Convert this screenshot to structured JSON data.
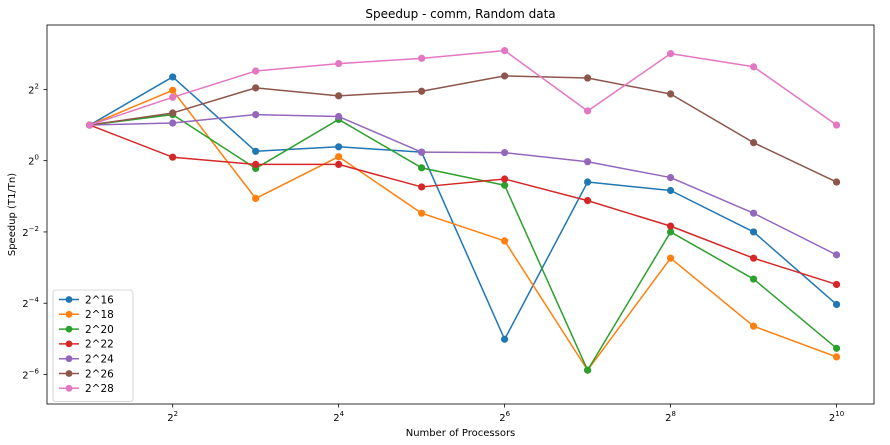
{
  "chart_data": {
    "type": "line",
    "title": "Speedup - comm, Random data",
    "xlabel": "Number of Processors",
    "ylabel": "Speedup (T1/Tn)",
    "x_scale": "log2",
    "y_scale": "log2",
    "x": [
      2,
      4,
      8,
      16,
      32,
      64,
      128,
      256,
      512,
      1024
    ],
    "xlim": [
      1.4,
      1400
    ],
    "ylim": [
      0.0088,
      14
    ],
    "x_ticks": [
      {
        "value": 4,
        "base": "2",
        "exp": "2"
      },
      {
        "value": 16,
        "base": "2",
        "exp": "4"
      },
      {
        "value": 64,
        "base": "2",
        "exp": "6"
      },
      {
        "value": 256,
        "base": "2",
        "exp": "8"
      },
      {
        "value": 1024,
        "base": "2",
        "exp": "10"
      }
    ],
    "y_ticks": [
      {
        "value": 4,
        "base": "2",
        "exp": "2"
      },
      {
        "value": 1,
        "base": "2",
        "exp": "0"
      },
      {
        "value": 0.25,
        "base": "2",
        "exp": "−2"
      },
      {
        "value": 0.0625,
        "base": "2",
        "exp": "−4"
      },
      {
        "value": 0.015625,
        "base": "2",
        "exp": "−6"
      }
    ],
    "grid": false,
    "legend_position": "lower-left",
    "series": [
      {
        "name": "2^16",
        "color": "#1f77b4",
        "values": [
          2.0,
          5.1,
          1.2,
          1.31,
          1.18,
          0.031,
          0.66,
          0.56,
          0.25,
          0.061
        ]
      },
      {
        "name": "2^18",
        "color": "#ff7f0e",
        "values": [
          2.0,
          3.93,
          0.48,
          1.08,
          0.36,
          0.21,
          0.017,
          0.15,
          0.04,
          0.022
        ]
      },
      {
        "name": "2^20",
        "color": "#2ca02c",
        "values": [
          2.0,
          2.45,
          0.86,
          2.23,
          0.87,
          0.62,
          0.017,
          0.25,
          0.1,
          0.026
        ]
      },
      {
        "name": "2^22",
        "color": "#d62728",
        "values": [
          2.0,
          1.07,
          0.93,
          0.93,
          0.6,
          0.7,
          0.46,
          0.28,
          0.15,
          0.09
        ]
      },
      {
        "name": "2^24",
        "color": "#9467bd",
        "values": [
          2.0,
          2.08,
          2.45,
          2.36,
          1.18,
          1.17,
          0.98,
          0.72,
          0.36,
          0.16
        ]
      },
      {
        "name": "2^26",
        "color": "#8c564b",
        "values": [
          2.0,
          2.53,
          4.12,
          3.53,
          3.86,
          5.2,
          4.99,
          3.66,
          1.42,
          0.66
        ]
      },
      {
        "name": "2^28",
        "color": "#e377c2",
        "values": [
          2.0,
          3.43,
          5.72,
          6.61,
          7.32,
          8.5,
          2.63,
          8.02,
          6.21,
          2.0
        ]
      }
    ]
  }
}
